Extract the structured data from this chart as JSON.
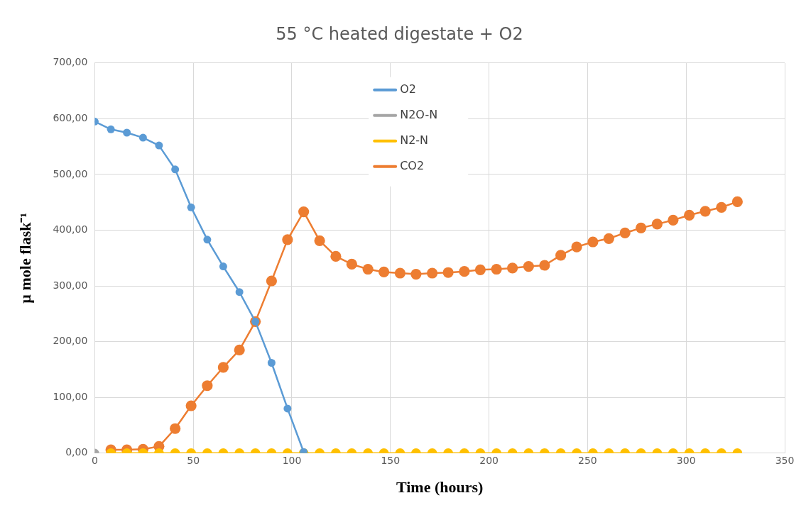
{
  "chart_data": {
    "type": "line",
    "title": "55 °C heated digestate + O2",
    "xlabel": "Time (hours)",
    "ylabel": "µ mole flask⁻¹",
    "x": [
      0,
      8.2,
      16.3,
      24.5,
      32.6,
      40.8,
      48.9,
      57.1,
      65.2,
      73.4,
      81.5,
      89.7,
      97.8,
      106,
      114.1,
      122.3,
      130.4,
      138.6,
      146.7,
      154.9,
      163,
      171.2,
      179.3,
      187.5,
      195.6,
      203.8,
      211.9,
      220.1,
      228.2,
      236.4,
      244.5,
      252.7,
      260.8,
      269,
      277.1,
      285.3,
      293.4,
      301.6,
      309.7,
      317.9,
      326
    ],
    "series": [
      {
        "name": "O2",
        "color": "#5b9bd5",
        "values": [
          595,
          581,
          575,
          566,
          552,
          509,
          441,
          383,
          335,
          289,
          236,
          162,
          80,
          2,
          null,
          null,
          null,
          null,
          null,
          null,
          null,
          null,
          null,
          null,
          null,
          null,
          null,
          null,
          null,
          null,
          null,
          null,
          null,
          null,
          null,
          null,
          null,
          null,
          null,
          null,
          null
        ]
      },
      {
        "name": "N2O-N",
        "color": "#a5a5a5",
        "values": [
          0,
          null,
          null,
          null,
          null,
          null,
          null,
          null,
          null,
          null,
          null,
          null,
          null,
          null,
          null,
          null,
          null,
          null,
          null,
          null,
          null,
          null,
          null,
          null,
          null,
          null,
          null,
          null,
          null,
          null,
          null,
          null,
          null,
          null,
          null,
          null,
          null,
          null,
          null,
          null,
          null
        ]
      },
      {
        "name": "N2-N",
        "color": "#ffc000",
        "values": [
          null,
          0,
          0,
          0,
          0,
          0,
          0,
          0,
          0,
          0,
          0,
          0,
          0,
          0,
          0,
          0,
          0,
          0,
          0,
          0,
          0,
          0,
          0,
          0,
          0,
          0,
          0,
          0,
          0,
          0,
          0,
          0,
          0,
          0,
          0,
          0,
          0,
          0,
          0,
          0,
          0
        ]
      },
      {
        "name": "CO2",
        "color": "#ed7d31",
        "values": [
          null,
          6,
          6,
          7,
          12,
          44,
          85,
          121,
          154,
          185,
          236,
          309,
          383,
          433,
          381,
          353,
          339,
          330,
          325,
          323,
          321,
          323,
          324,
          326,
          329,
          330,
          332,
          335,
          337,
          355,
          370,
          379,
          385,
          395,
          404,
          411,
          418,
          427,
          434,
          441,
          451
        ]
      }
    ],
    "xlim": [
      0,
      350
    ],
    "xticks": [
      0,
      50,
      100,
      150,
      200,
      250,
      300,
      350
    ],
    "ylim": [
      0,
      700
    ],
    "yticks": [
      {
        "value": 0,
        "label": "0,00"
      },
      {
        "value": 100,
        "label": "100,00"
      },
      {
        "value": 200,
        "label": "200,00"
      },
      {
        "value": 300,
        "label": "300,00"
      },
      {
        "value": 400,
        "label": "400,00"
      },
      {
        "value": 500,
        "label": "500,00"
      },
      {
        "value": 600,
        "label": "600,00"
      },
      {
        "value": 700,
        "label": "700,00"
      }
    ],
    "grid": true,
    "legend": "top",
    "marker": "circle",
    "line_style": "solid"
  }
}
